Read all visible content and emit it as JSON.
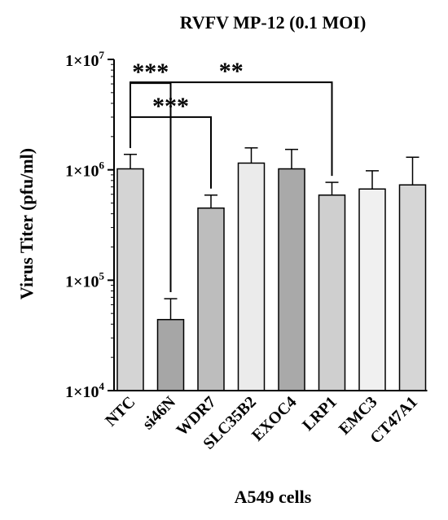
{
  "chart_data": {
    "type": "bar",
    "title": "RVFV MP-12 (0.1 MOI)",
    "xlabel": "A549 cells",
    "ylabel": "Virus Titer (pfu/ml)",
    "yscale": "log",
    "ylim": [
      10000,
      10000000
    ],
    "yticks": [
      {
        "value": 10000,
        "base": "1×10",
        "exp": "4"
      },
      {
        "value": 100000,
        "base": "1×10",
        "exp": "5"
      },
      {
        "value": 1000000,
        "base": "1×10",
        "exp": "6"
      },
      {
        "value": 10000000,
        "base": "1×10",
        "exp": "7"
      }
    ],
    "categories": [
      "NTC",
      "si46N",
      "WDR7",
      "SLC35B2",
      "EXOC4",
      "LRP1",
      "EMC3",
      "CT47A1"
    ],
    "values": [
      1020000,
      44000,
      450000,
      1150000,
      1020000,
      590000,
      670000,
      730000
    ],
    "error_upper": [
      1380000,
      68000,
      590000,
      1580000,
      1530000,
      770000,
      980000,
      1300000
    ],
    "bar_colors": [
      "#d4d4d4",
      "#a6a6a6",
      "#bdbdbd",
      "#ebebeb",
      "#a9a9a9",
      "#cfcfcf",
      "#f0f0f0",
      "#d6d6d6"
    ],
    "significance": [
      {
        "from": "NTC",
        "to": "si46N",
        "label": "***",
        "level": 6100000
      },
      {
        "from": "NTC",
        "to": "WDR7",
        "label": "***",
        "level": 3000000
      },
      {
        "from": "NTC",
        "to": "LRP1",
        "label": "**",
        "level": 6200000
      }
    ],
    "grid": false,
    "legend": "none"
  }
}
